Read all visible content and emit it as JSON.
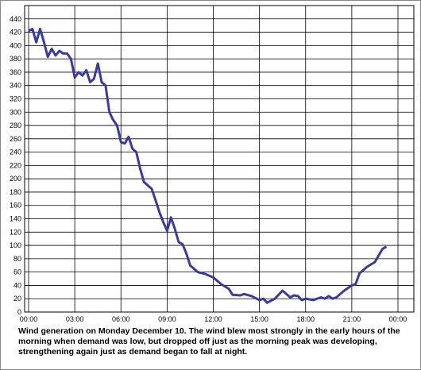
{
  "chart_data": {
    "type": "line",
    "caption": "Wind generation on Monday December 10. The wind blew most strongly in the early hours of the morning when demand was low, but dropped off just as the morning peak was developing, strengthening again just as demand began to fall at night.",
    "x": [
      0,
      0.25,
      0.5,
      0.75,
      1.0,
      1.25,
      1.5,
      1.75,
      2.0,
      2.25,
      2.5,
      2.75,
      3.0,
      3.25,
      3.5,
      3.75,
      4.0,
      4.25,
      4.5,
      4.75,
      5.0,
      5.25,
      5.5,
      5.75,
      6.0,
      6.25,
      6.5,
      6.75,
      7.0,
      7.25,
      7.5,
      7.75,
      8.0,
      8.25,
      8.5,
      8.75,
      9.0,
      9.25,
      9.5,
      9.75,
      10.0,
      10.25,
      10.5,
      10.75,
      11.0,
      11.5,
      12.0,
      12.5,
      13.0,
      13.25,
      13.75,
      14.0,
      14.5,
      15.0,
      15.25,
      15.5,
      16.0,
      16.5,
      17.0,
      17.25,
      17.5,
      17.75,
      18.0,
      18.5,
      19.0,
      19.25,
      19.5,
      19.75,
      20.0,
      20.5,
      21.0,
      21.25,
      21.5,
      22.0,
      22.5,
      23.0,
      23.25
    ],
    "series": [
      {
        "name": "Wind generation",
        "color": "#3b3b9a",
        "values": [
          422,
          425,
          405,
          425,
          405,
          383,
          395,
          385,
          392,
          388,
          388,
          380,
          352,
          360,
          355,
          363,
          345,
          350,
          373,
          345,
          340,
          300,
          288,
          280,
          255,
          253,
          263,
          245,
          240,
          215,
          195,
          190,
          185,
          168,
          150,
          135,
          122,
          142,
          125,
          105,
          102,
          88,
          70,
          65,
          60,
          57,
          52,
          42,
          35,
          26,
          25,
          27,
          24,
          18,
          20,
          14,
          20,
          32,
          22,
          25,
          24,
          18,
          20,
          18,
          22,
          20,
          24,
          20,
          22,
          32,
          40,
          42,
          58,
          68,
          75,
          95,
          98
        ]
      }
    ],
    "xlim": [
      0,
      24
    ],
    "ylim": [
      0,
      460
    ],
    "xticks": [
      {
        "value": 0,
        "label": "00:00"
      },
      {
        "value": 3,
        "label": "03:00"
      },
      {
        "value": 6,
        "label": "06:00"
      },
      {
        "value": 9,
        "label": "09:00"
      },
      {
        "value": 12,
        "label": "12:00"
      },
      {
        "value": 15,
        "label": "15:00"
      },
      {
        "value": 18,
        "label": "18:00"
      },
      {
        "value": 21,
        "label": "21:00"
      },
      {
        "value": 24,
        "label": "00:00"
      }
    ],
    "yticks": [
      0,
      20,
      40,
      60,
      80,
      100,
      120,
      140,
      160,
      180,
      200,
      220,
      240,
      260,
      280,
      300,
      320,
      340,
      360,
      380,
      400,
      420,
      440
    ],
    "grid": true
  }
}
